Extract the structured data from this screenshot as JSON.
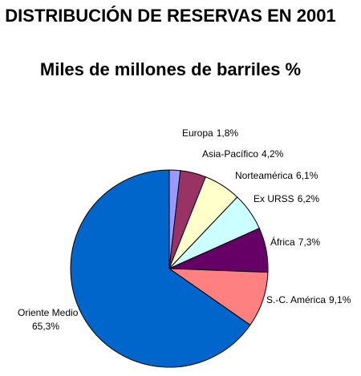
{
  "chart_data": {
    "type": "pie",
    "title": "DISTRIBUCIÓN DE RESERVAS EN 2001",
    "subtitle": "Miles de millones de barriles %",
    "categories": [
      "Europa",
      "Asia-Pacífico",
      "Norteamérica",
      "Ex URSS",
      "África",
      "S.-C. América",
      "Oriente Medio"
    ],
    "values": [
      1.8,
      4.2,
      6.1,
      6.2,
      7.3,
      9.1,
      65.3
    ],
    "value_labels": [
      "1,8%",
      "4,2%",
      "6,1%",
      "6,2%",
      "7,3%",
      "9,1%",
      "65,3%"
    ],
    "colors": [
      "#9999ff",
      "#993366",
      "#ffffcc",
      "#ccffff",
      "#660066",
      "#ff8080",
      "#0066cc"
    ]
  }
}
